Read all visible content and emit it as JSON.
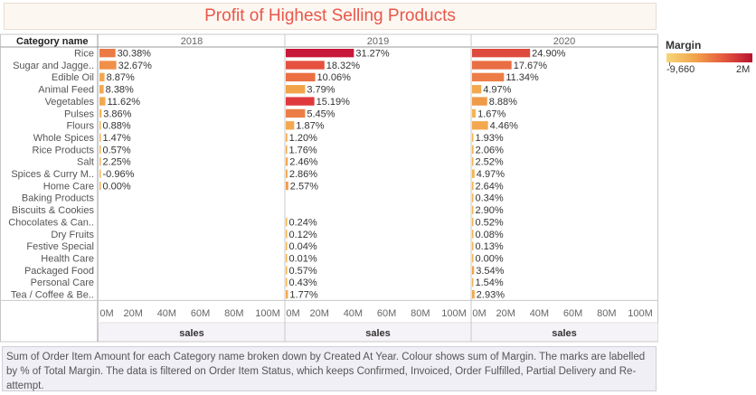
{
  "title": "Profit of Highest Selling Products",
  "footer": "Sum of Order Item Amount for each Category name broken down by Created At Year.  Colour shows sum of Margin.  The marks are labelled by % of Total Margin. The data is filtered on Order Item Status, which keeps Confirmed, Invoiced, Order Fulfilled, Partial Delivery and Re-attempt.",
  "legend": {
    "title": "Margin",
    "min_label": "-9,660",
    "max_label": "2M",
    "colors": [
      "#f6d77a",
      "#f1a44a",
      "#e5583f",
      "#b8122e"
    ]
  },
  "chart_data": {
    "type": "bar",
    "orientation": "horizontal",
    "row_header": "Category name",
    "categories": [
      "Rice",
      "Sugar and Jagge..",
      "Edible Oil",
      "Animal Feed",
      "Vegetables",
      "Pulses",
      "Flours",
      "Whole Spices",
      "Rice Products",
      "Salt",
      "Spices & Curry M..",
      "Home Care",
      "Baking Products",
      "Biscuits & Cookies",
      "Chocolates & Can..",
      "Dry Fruits",
      "Festive Special",
      "Health Care",
      "Packaged Food",
      "Personal Care",
      "Tea / Coffee & Be.."
    ],
    "xlabel": "sales",
    "xlim": [
      0,
      100
    ],
    "x_ticks": [
      "0M",
      "20M",
      "40M",
      "60M",
      "80M",
      "100M"
    ],
    "panels": [
      {
        "name": "2018",
        "values": [
          9.5,
          10,
          3,
          2.5,
          3.5,
          1.2,
          0.7,
          0.5,
          0.3,
          0.5,
          0.3,
          0.2,
          null,
          null,
          null,
          null,
          null,
          null,
          null,
          null,
          null
        ],
        "labels": [
          "30.38%",
          "32.67%",
          "8.87%",
          "8.38%",
          "11.62%",
          "3.86%",
          "0.88%",
          "1.47%",
          "0.57%",
          "2.25%",
          "-0.96%",
          "0.00%",
          "",
          "",
          "",
          "",
          "",
          "",
          "",
          "",
          ""
        ],
        "colors": [
          "#ec7a45",
          "#ef8f48",
          "#f3a850",
          "#f3a850",
          "#f3a850",
          "#f4b555",
          "#f4b555",
          "#f4b555",
          "#f4b555",
          "#f4b555",
          "#f4b555",
          "#f4b555",
          "",
          "",
          "",
          "",
          "",
          "",
          "",
          "",
          ""
        ]
      },
      {
        "name": "2019",
        "values": [
          40.5,
          23,
          17.5,
          11.5,
          17,
          11.5,
          5,
          0.9,
          0.8,
          1.2,
          1,
          1.5,
          null,
          null,
          0.3,
          0.2,
          0.2,
          0.1,
          0.8,
          0.3,
          1.3
        ],
        "labels": [
          "31.27%",
          "18.32%",
          "10.06%",
          "3.79%",
          "15.19%",
          "5.45%",
          "1.87%",
          "1.20%",
          "1.76%",
          "2.46%",
          "2.86%",
          "2.57%",
          "",
          "",
          "0.24%",
          "0.12%",
          "0.04%",
          "0.01%",
          "0.57%",
          "0.43%",
          "1.77%"
        ],
        "colors": [
          "#c8173a",
          "#e5503f",
          "#ec6f43",
          "#f1a44a",
          "#e0393d",
          "#ed7d46",
          "#f3a850",
          "#f3a850",
          "#f3a850",
          "#f3a850",
          "#f3a850",
          "#f09a49",
          "",
          "",
          "#f4b555",
          "#f4b555",
          "#f4b555",
          "#f4b555",
          "#f4b555",
          "#f4b555",
          "#f3a850"
        ]
      },
      {
        "name": "2020",
        "values": [
          34.5,
          23.5,
          19,
          5.5,
          9,
          2.2,
          9.5,
          0.8,
          0.9,
          0.5,
          1.5,
          0.5,
          0.5,
          0.3,
          0.3,
          0.1,
          0.1,
          0.05,
          1.2,
          0.7,
          1.5
        ],
        "labels": [
          "24.90%",
          "17.67%",
          "11.34%",
          "4.97%",
          "8.88%",
          "1.67%",
          "4.46%",
          "1.93%",
          "2.06%",
          "2.52%",
          "4.97%",
          "2.64%",
          "0.34%",
          "2.90%",
          "0.52%",
          "0.08%",
          "0.13%",
          "0.00%",
          "3.54%",
          "1.54%",
          "2.93%"
        ],
        "colors": [
          "#df4a3e",
          "#e86f43",
          "#ed7d46",
          "#f3a850",
          "#f09a49",
          "#f4b555",
          "#f3a850",
          "#f4b555",
          "#f4b555",
          "#f4b555",
          "#f4b555",
          "#f4b555",
          "#f4b555",
          "#f4b555",
          "#f4b555",
          "#f4b555",
          "#f4b555",
          "#f4b555",
          "#f1a44a",
          "#f4b555",
          "#f3a850"
        ]
      }
    ]
  }
}
